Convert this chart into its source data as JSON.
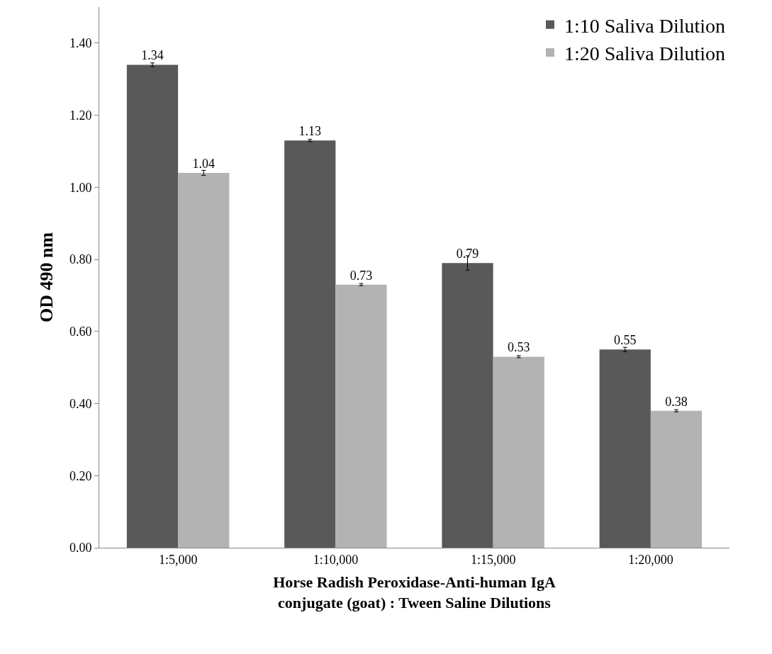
{
  "chart_data": {
    "type": "bar",
    "xlabel": "Horse Radish Peroxidase-Anti-human IgA\nconjugate (goat) : Tween Saline Dilutions",
    "ylabel": "OD 490 nm",
    "categories": [
      "1:5,000",
      "1:10,000",
      "1:15,000",
      "1:20,000"
    ],
    "series": [
      {
        "name": "1:10 Saliva Dilution",
        "color": "#595959",
        "values": [
          1.34,
          1.13,
          0.79,
          0.55
        ],
        "errors": [
          0.005,
          0.003,
          0.02,
          0.006
        ]
      },
      {
        "name": "1:20 Saliva Dilution",
        "color": "#b3b3b3",
        "values": [
          1.04,
          0.73,
          0.53,
          0.38
        ],
        "errors": [
          0.007,
          0.003,
          0.003,
          0.003
        ]
      }
    ],
    "ylim": [
      0,
      1.5
    ],
    "yticks": [
      {
        "value": 0,
        "label": "0.00"
      },
      {
        "value": 0.2,
        "label": "0.20"
      },
      {
        "value": 0.4,
        "label": "0.40"
      },
      {
        "value": 0.6,
        "label": "0.60"
      },
      {
        "value": 0.8,
        "label": "0.80"
      },
      {
        "value": 1.0,
        "label": "1.00"
      },
      {
        "value": 1.2,
        "label": "1.20"
      },
      {
        "value": 1.4,
        "label": "1.40"
      }
    ],
    "data_labels": true,
    "legend": "top right"
  }
}
